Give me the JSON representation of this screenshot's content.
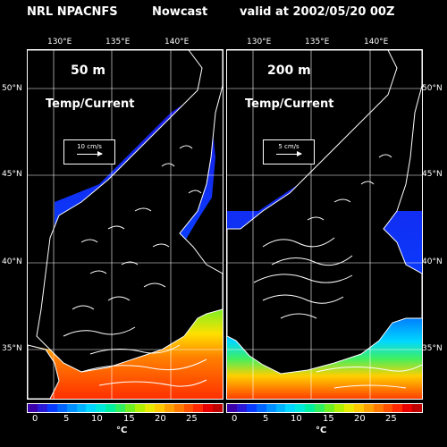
{
  "header": {
    "source": "NRL  NPACNFS",
    "mode": "Nowcast",
    "valid": "valid at 2002/05/20 00Z"
  },
  "longitude_labels": [
    "130°E",
    "135°E",
    "140°E"
  ],
  "latitude_labels": [
    "50°N",
    "45°N",
    "40°N",
    "35°N"
  ],
  "panels": [
    {
      "depth": "50 m",
      "variable": "Temp/Current",
      "ref_vector": "10 cm/s"
    },
    {
      "depth": "200 m",
      "variable": "Temp/Current",
      "ref_vector": "5 cm/s"
    }
  ],
  "colorbar": {
    "ticks": [
      "0",
      "5",
      "10",
      "15",
      "20",
      "25"
    ],
    "unit": "°C",
    "colors": [
      "#3b00a8",
      "#2a1ad8",
      "#0a3cff",
      "#0066ff",
      "#0090ff",
      "#00b4ff",
      "#00d8ff",
      "#00eadc",
      "#00f0a0",
      "#30f060",
      "#70f020",
      "#b0f000",
      "#e8e800",
      "#ffc800",
      "#ffa000",
      "#ff7800",
      "#ff5000",
      "#ff2800",
      "#e80000",
      "#c00000"
    ]
  }
}
